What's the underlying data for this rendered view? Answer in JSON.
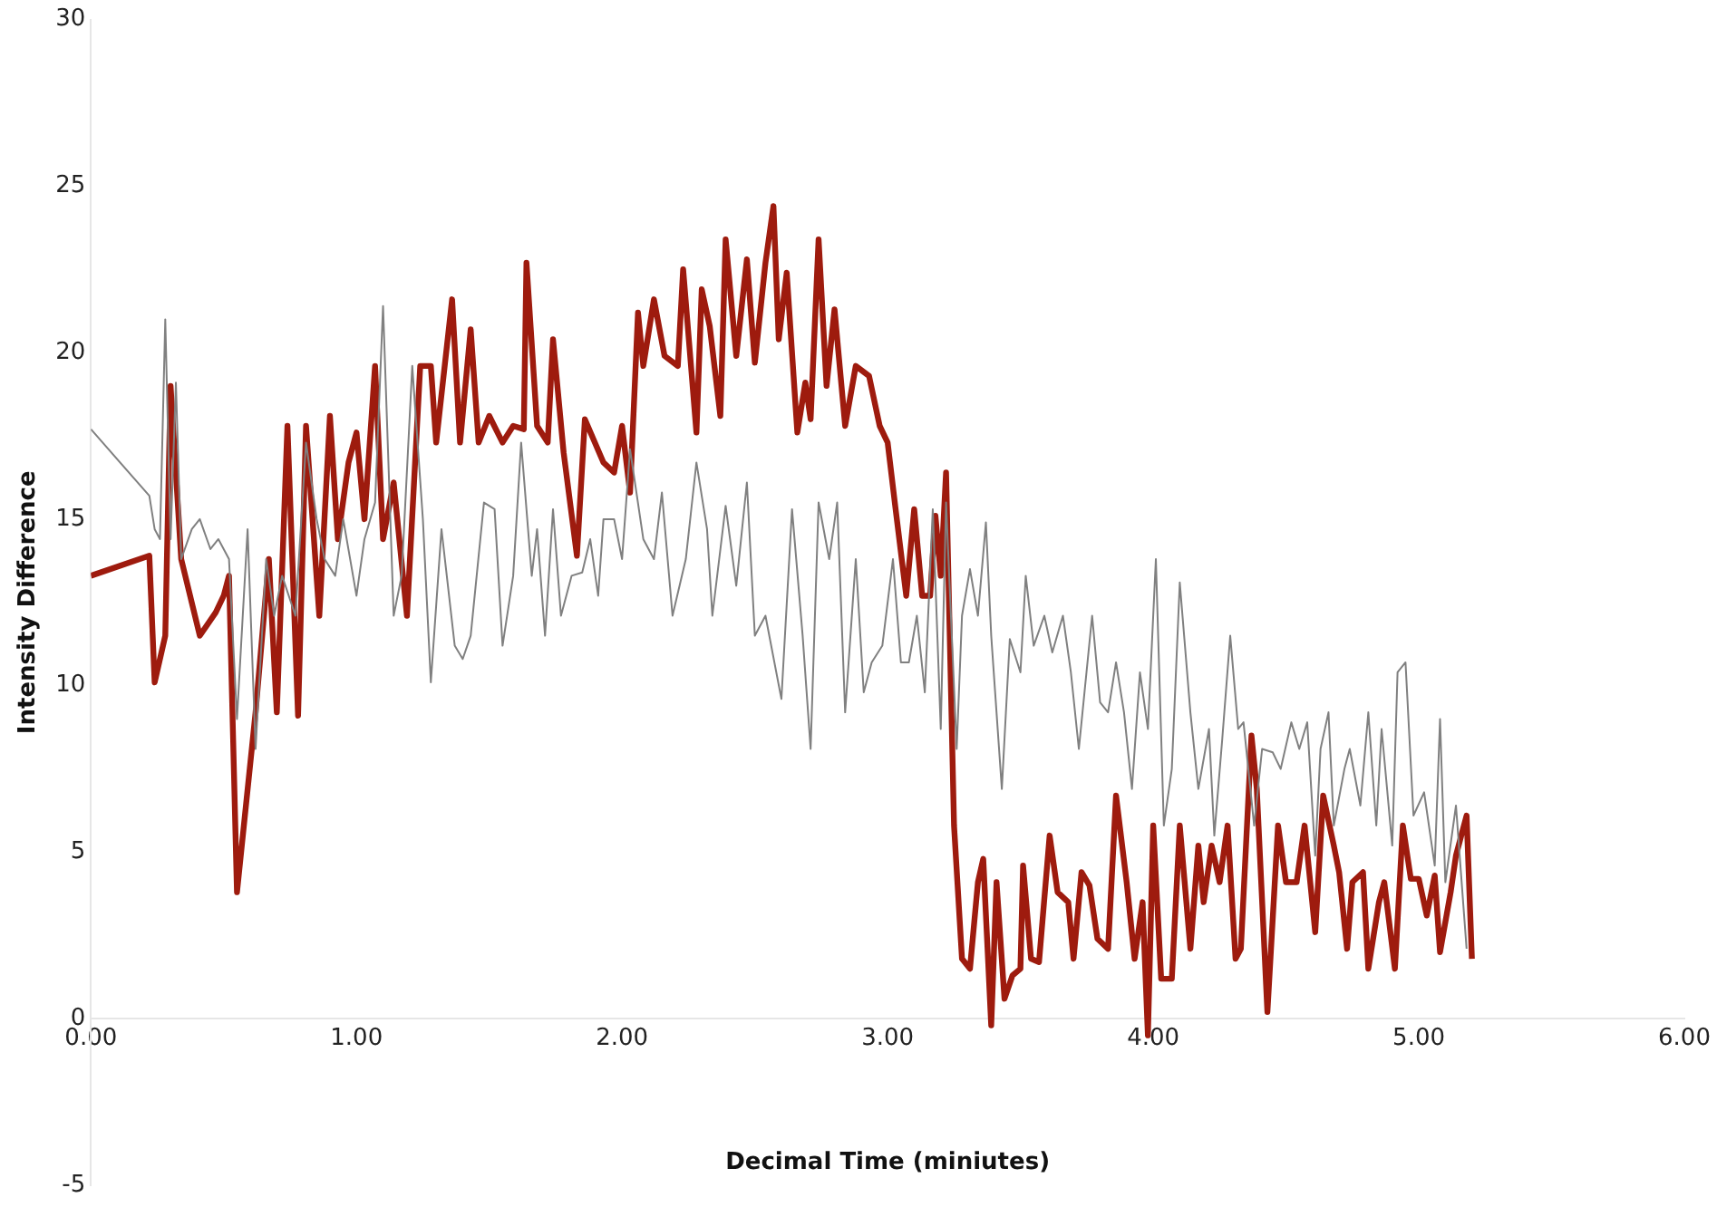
{
  "chart_data": {
    "type": "line",
    "xlabel": "Decimal Time (miniutes)",
    "ylabel": "Intensity Difference",
    "xlim": [
      0,
      6
    ],
    "xticks": [
      {
        "value": 0,
        "label": "0.00"
      },
      {
        "value": 1,
        "label": "1.00"
      },
      {
        "value": 2,
        "label": "2.00"
      },
      {
        "value": 3,
        "label": "3.00"
      },
      {
        "value": 4,
        "label": "4.00"
      },
      {
        "value": 5,
        "label": "5.00"
      },
      {
        "value": 6,
        "label": "6.00"
      }
    ],
    "ylim": [
      -5,
      30
    ],
    "yticks": [
      -5,
      0,
      5,
      10,
      15,
      20,
      25,
      30
    ],
    "grid": false,
    "legend": false,
    "marker": "none",
    "line_style": "solid",
    "series": [
      {
        "color": "#808080",
        "x": [
          0,
          0.22,
          0.24,
          0.26,
          0.28,
          0.3,
          0.32,
          0.34,
          0.38,
          0.41,
          0.45,
          0.48,
          0.52,
          0.55,
          0.59,
          0.62,
          0.66,
          0.69,
          0.72,
          0.77,
          0.81,
          0.85,
          0.88,
          0.92,
          0.95,
          1.0,
          1.03,
          1.07,
          1.1,
          1.14,
          1.17,
          1.21,
          1.25,
          1.28,
          1.32,
          1.37,
          1.4,
          1.43,
          1.48,
          1.52,
          1.55,
          1.59,
          1.62,
          1.66,
          1.68,
          1.71,
          1.74,
          1.77,
          1.81,
          1.85,
          1.88,
          1.91,
          1.93,
          1.97,
          2.0,
          2.03,
          2.08,
          2.12,
          2.15,
          2.19,
          2.24,
          2.28,
          2.32,
          2.34,
          2.39,
          2.43,
          2.47,
          2.5,
          2.54,
          2.6,
          2.64,
          2.68,
          2.71,
          2.74,
          2.78,
          2.81,
          2.84,
          2.88,
          2.91,
          2.94,
          2.98,
          3.02,
          3.05,
          3.08,
          3.11,
          3.14,
          3.17,
          3.2,
          3.22,
          3.26,
          3.28,
          3.31,
          3.34,
          3.37,
          3.39,
          3.43,
          3.46,
          3.5,
          3.52,
          3.55,
          3.59,
          3.62,
          3.66,
          3.69,
          3.72,
          3.77,
          3.8,
          3.83,
          3.86,
          3.89,
          3.92,
          3.95,
          3.98,
          4.01,
          4.04,
          4.07,
          4.1,
          4.14,
          4.17,
          4.21,
          4.23,
          4.26,
          4.29,
          4.32,
          4.34,
          4.38,
          4.41,
          4.45,
          4.48,
          4.52,
          4.55,
          4.58,
          4.61,
          4.63,
          4.66,
          4.68,
          4.72,
          4.74,
          4.78,
          4.81,
          4.84,
          4.86,
          4.9,
          4.92,
          4.95,
          4.98,
          5.02,
          5.06,
          5.08,
          5.1,
          5.14,
          5.18
        ],
        "values": [
          17.7,
          15.7,
          14.7,
          14.4,
          21.0,
          14.4,
          19.1,
          13.8,
          14.7,
          15.0,
          14.1,
          14.4,
          13.8,
          9.0,
          14.7,
          8.1,
          13.8,
          12.1,
          13.3,
          12.1,
          17.3,
          15.0,
          13.8,
          13.3,
          15.0,
          12.7,
          14.4,
          15.5,
          21.4,
          12.1,
          13.3,
          19.6,
          15.0,
          10.1,
          14.7,
          11.2,
          10.8,
          11.5,
          15.5,
          15.3,
          11.2,
          13.3,
          17.3,
          13.3,
          14.7,
          11.5,
          15.3,
          12.1,
          13.3,
          13.4,
          14.4,
          12.7,
          15.0,
          15.0,
          13.8,
          17.1,
          14.4,
          13.8,
          15.8,
          12.1,
          13.8,
          16.7,
          14.7,
          12.1,
          15.4,
          13.0,
          16.1,
          11.5,
          12.1,
          9.6,
          15.3,
          11.5,
          8.1,
          15.5,
          13.8,
          15.5,
          9.2,
          13.8,
          9.8,
          10.7,
          11.2,
          13.8,
          10.7,
          10.7,
          12.1,
          9.8,
          15.3,
          8.7,
          15.5,
          8.1,
          12.1,
          13.5,
          12.1,
          14.9,
          11.5,
          6.9,
          11.4,
          10.4,
          13.3,
          11.2,
          12.1,
          11.0,
          12.1,
          10.4,
          8.1,
          12.1,
          9.5,
          9.2,
          10.7,
          9.2,
          6.9,
          10.4,
          8.7,
          13.8,
          5.8,
          7.5,
          13.1,
          9.2,
          6.9,
          8.7,
          5.5,
          8.4,
          11.5,
          8.7,
          8.9,
          5.8,
          8.1,
          8.0,
          7.5,
          8.9,
          8.1,
          8.9,
          4.9,
          8.1,
          9.2,
          5.8,
          7.5,
          8.1,
          6.4,
          9.2,
          5.8,
          8.7,
          5.2,
          10.4,
          10.7,
          6.1,
          6.8,
          4.6,
          9.0,
          4.1,
          6.4,
          2.1
        ]
      },
      {
        "color": "#9e1b0e",
        "x": [
          0,
          0.22,
          0.24,
          0.28,
          0.3,
          0.34,
          0.41,
          0.47,
          0.5,
          0.52,
          0.55,
          0.62,
          0.67,
          0.7,
          0.74,
          0.78,
          0.81,
          0.86,
          0.9,
          0.93,
          0.97,
          1.0,
          1.03,
          1.07,
          1.1,
          1.14,
          1.19,
          1.24,
          1.28,
          1.3,
          1.36,
          1.39,
          1.43,
          1.46,
          1.5,
          1.55,
          1.59,
          1.63,
          1.64,
          1.68,
          1.72,
          1.74,
          1.78,
          1.83,
          1.86,
          1.93,
          1.97,
          2.0,
          2.03,
          2.06,
          2.08,
          2.12,
          2.16,
          2.21,
          2.23,
          2.28,
          2.3,
          2.33,
          2.37,
          2.39,
          2.43,
          2.47,
          2.5,
          2.54,
          2.57,
          2.59,
          2.62,
          2.66,
          2.69,
          2.71,
          2.74,
          2.77,
          2.8,
          2.84,
          2.88,
          2.93,
          2.97,
          3.0,
          3.03,
          3.07,
          3.1,
          3.13,
          3.16,
          3.18,
          3.2,
          3.22,
          3.25,
          3.28,
          3.31,
          3.34,
          3.36,
          3.39,
          3.41,
          3.44,
          3.47,
          3.5,
          3.51,
          3.54,
          3.57,
          3.61,
          3.64,
          3.68,
          3.7,
          3.73,
          3.76,
          3.79,
          3.83,
          3.86,
          3.9,
          3.93,
          3.96,
          3.98,
          4.0,
          4.03,
          4.07,
          4.1,
          4.14,
          4.17,
          4.19,
          4.22,
          4.25,
          4.28,
          4.31,
          4.33,
          4.37,
          4.39,
          4.43,
          4.47,
          4.5,
          4.54,
          4.57,
          4.61,
          4.64,
          4.68,
          4.7,
          4.73,
          4.75,
          4.79,
          4.81,
          4.85,
          4.87,
          4.91,
          4.94,
          4.97,
          5.0,
          5.03,
          5.06,
          5.08,
          5.12,
          5.14,
          5.18,
          5.2
        ],
        "values": [
          13.3,
          13.9,
          10.1,
          11.5,
          19.0,
          13.8,
          11.5,
          12.2,
          12.7,
          13.3,
          3.8,
          9.2,
          13.8,
          9.2,
          17.8,
          9.1,
          17.8,
          12.1,
          18.1,
          14.4,
          16.7,
          17.6,
          15.0,
          19.6,
          14.4,
          16.1,
          12.1,
          19.6,
          19.6,
          17.3,
          21.6,
          17.3,
          20.7,
          17.3,
          18.1,
          17.3,
          17.8,
          17.7,
          22.7,
          17.8,
          17.3,
          20.4,
          17.0,
          13.9,
          18.0,
          16.7,
          16.4,
          17.8,
          15.8,
          21.2,
          19.6,
          21.6,
          19.9,
          19.6,
          22.5,
          17.6,
          21.9,
          20.8,
          18.1,
          23.4,
          19.9,
          22.8,
          19.7,
          22.7,
          24.4,
          20.4,
          22.4,
          17.6,
          19.1,
          18.0,
          23.4,
          19.0,
          21.3,
          17.8,
          19.6,
          19.3,
          17.8,
          17.3,
          15.3,
          12.7,
          15.3,
          12.7,
          12.7,
          15.1,
          13.3,
          16.4,
          5.8,
          1.8,
          1.5,
          4.1,
          4.8,
          -0.2,
          4.1,
          0.6,
          1.3,
          1.5,
          4.6,
          1.8,
          1.7,
          5.5,
          3.8,
          3.5,
          1.8,
          4.4,
          4.0,
          2.4,
          2.1,
          6.7,
          4.1,
          1.8,
          3.5,
          -0.5,
          5.8,
          1.2,
          1.2,
          5.8,
          2.1,
          5.2,
          3.5,
          5.2,
          4.1,
          5.8,
          1.8,
          2.1,
          8.5,
          6.9,
          0.2,
          5.8,
          4.1,
          4.1,
          5.8,
          2.6,
          6.7,
          5.2,
          4.4,
          2.1,
          4.1,
          4.4,
          1.5,
          3.5,
          4.1,
          1.5,
          5.8,
          4.2,
          4.2,
          3.1,
          4.3,
          2.0,
          3.8,
          4.9,
          6.1,
          1.8
        ]
      }
    ]
  }
}
